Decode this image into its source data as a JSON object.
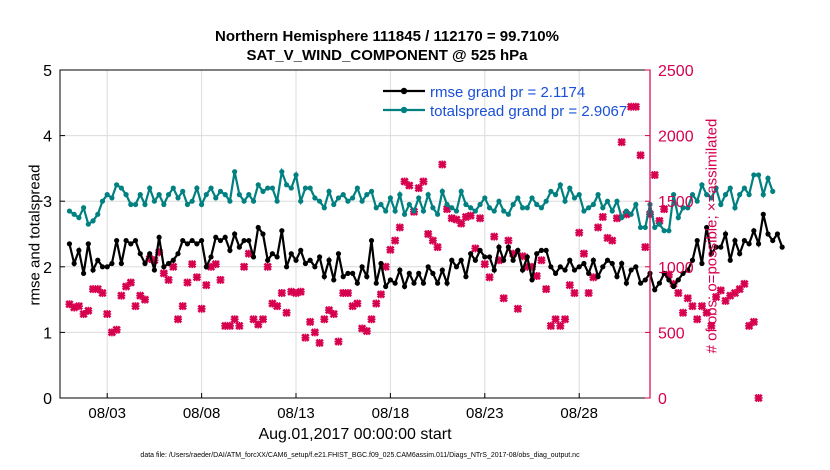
{
  "chart_data": {
    "type": "line",
    "title": "Northern Hemisphere 111845 / 112170 = 99.710%",
    "subtitle": "SAT_V_WIND_COMPONENT @ 525 hPa",
    "xlabel": "Aug.01,2017 00:00:00 start",
    "ylabel": "rmse and totalspread",
    "ylabel_right": "# of obs: o=possible; ×=assimilated",
    "footnote": "data file: /Users/raeder/DAI/ATM_forcXX/CAM6_setup/f.e21.FHIST_BGC.f09_025.CAM6assim.011/Diags_NTrS_2017-08/obs_diag_output.nc",
    "xlim": [
      0.5,
      31.75
    ],
    "ylim": [
      0,
      5
    ],
    "ylim_right": [
      0,
      2500
    ],
    "yticks": [
      "0",
      "1",
      "2",
      "3",
      "4",
      "5"
    ],
    "yticks_right": [
      "0",
      "500",
      "1000",
      "1500",
      "2000",
      "2500"
    ],
    "xticks": [
      {
        "day": 3,
        "label": "08/03"
      },
      {
        "day": 8,
        "label": "08/08"
      },
      {
        "day": 13,
        "label": "08/13"
      },
      {
        "day": 18,
        "label": "08/18"
      },
      {
        "day": 23,
        "label": "08/23"
      },
      {
        "day": 28,
        "label": "08/28"
      }
    ],
    "grid": true,
    "legend_position": "top-right",
    "colors": {
      "rmse": "#000000",
      "spread": "#008080",
      "obs": "#d6004f"
    },
    "series": [
      {
        "name": "rmse grand pr = 2.1174",
        "values": [
          2.35,
          2.05,
          2.25,
          1.9,
          2.35,
          1.95,
          2.1,
          2.0,
          2.0,
          2.05,
          2.4,
          2.05,
          2.4,
          2.35,
          2.4,
          2.2,
          2.05,
          2.2,
          1.95,
          2.45,
          2.0,
          2.05,
          2.1,
          2.2,
          2.4,
          2.35,
          2.4,
          2.35,
          2.4,
          2.0,
          2.15,
          2.45,
          2.4,
          2.45,
          2.25,
          2.5,
          2.3,
          2.4,
          2.4,
          2.15,
          2.6,
          2.5,
          2.1,
          2.2,
          2.15,
          2.55,
          2.0,
          2.2,
          2.1,
          2.25,
          2.05,
          2.1,
          2.0,
          2.15,
          1.85,
          2.1,
          1.8,
          2.2,
          1.85,
          1.9,
          1.9,
          1.75,
          2.0,
          1.85,
          2.4,
          1.75,
          2.05,
          1.7,
          1.8,
          1.75,
          1.95,
          1.7,
          1.9,
          1.75,
          1.9,
          1.75,
          2.0,
          1.9,
          1.75,
          1.95,
          1.75,
          2.1,
          2.0,
          2.1,
          1.85,
          2.2,
          2.1,
          2.25,
          2.15,
          2.15,
          1.95,
          2.3,
          2.1,
          2.3,
          2.1,
          2.25,
          1.95,
          2.15,
          1.8,
          2.2,
          2.25,
          2.25,
          2.0,
          1.9,
          2.0,
          1.95,
          2.1,
          1.95,
          2.0,
          2.05,
          1.9,
          2.1,
          1.85,
          2.0,
          2.1,
          2.05,
          1.85,
          2.05,
          1.75,
          1.95,
          2.0,
          1.75,
          1.8,
          1.9,
          1.65,
          1.75,
          1.9,
          1.8,
          1.7,
          1.8,
          1.9,
          1.95,
          2.1,
          2.4,
          2.05,
          2.6,
          2.2,
          2.3,
          2.3,
          2.5,
          2.1,
          2.4,
          2.2,
          2.4,
          2.35,
          2.55,
          2.35,
          2.8,
          2.5,
          2.4,
          2.5,
          2.3
        ]
      },
      {
        "name": "totalspread grand pr = 2.9067",
        "values": [
          2.85,
          2.8,
          2.75,
          2.9,
          2.65,
          2.7,
          2.8,
          3.0,
          3.1,
          3.05,
          3.25,
          3.2,
          3.1,
          2.95,
          2.95,
          3.1,
          2.95,
          3.2,
          3.0,
          3.1,
          2.95,
          3.1,
          3.2,
          3.05,
          3.15,
          2.95,
          3.0,
          3.2,
          2.95,
          3.1,
          3.2,
          3.05,
          3.15,
          3.1,
          3.0,
          3.45,
          3.1,
          3.0,
          3.1,
          3.0,
          3.25,
          3.15,
          3.2,
          3.2,
          3.0,
          3.45,
          3.25,
          3.2,
          3.4,
          3.0,
          3.2,
          3.2,
          3.05,
          3.0,
          2.9,
          3.15,
          2.95,
          3.05,
          3.1,
          3.0,
          3.05,
          3.2,
          3.0,
          3.1,
          3.15,
          2.9,
          2.95,
          2.85,
          3.05,
          2.85,
          3.1,
          2.8,
          2.95,
          2.85,
          3.05,
          2.85,
          3.1,
          2.9,
          2.8,
          3.15,
          2.95,
          2.9,
          2.85,
          3.15,
          2.95,
          2.9,
          2.85,
          2.95,
          3.05,
          2.9,
          2.85,
          3.0,
          2.85,
          2.8,
          2.95,
          3.05,
          2.9,
          2.9,
          3.05,
          2.95,
          2.9,
          3.0,
          3.15,
          3.1,
          3.25,
          3.0,
          3.2,
          3.05,
          3.1,
          2.85,
          2.9,
          2.95,
          3.1,
          2.9,
          3.0,
          2.85,
          3.0,
          2.75,
          2.85,
          2.8,
          2.95,
          2.6,
          2.6,
          2.95,
          2.6,
          2.65,
          2.55,
          2.55,
          3.1,
          2.75,
          2.9,
          2.9,
          3.1,
          3.0,
          3.25,
          3.1,
          3.05,
          3.2,
          2.95,
          3.1,
          3.2,
          2.9,
          3.1,
          3.2,
          3.1,
          3.4,
          3.4,
          3.1,
          3.35,
          3.15
        ]
      },
      {
        "name": "obs assimilated",
        "values": [
          715,
          690,
          700,
          640,
          665,
          830,
          830,
          800,
          640,
          500,
          520,
          780,
          850,
          880,
          700,
          780,
          750,
          1060,
          1050,
          1110,
          950,
          900,
          1000,
          600,
          700,
          880,
          1020,
          920,
          680,
          860,
          1000,
          1020,
          900,
          550,
          550,
          600,
          550,
          1000,
          1100,
          600,
          560,
          600,
          1000,
          720,
          700,
          800,
          650,
          810,
          800,
          810,
          460,
          580,
          500,
          420,
          600,
          670,
          640,
          430,
          800,
          800,
          700,
          720,
          530,
          510,
          600,
          720,
          790,
          1000,
          1130,
          1200,
          1300,
          1650,
          1620,
          1420,
          1600,
          1650,
          1250,
          1200,
          1150,
          1780,
          1440,
          1370,
          1360,
          1330,
          1380,
          1390,
          1140,
          1370,
          1020,
          920,
          1230,
          1050,
          760,
          1200,
          1100,
          680,
          1080,
          1000,
          1000,
          930,
          1050,
          830,
          550,
          600,
          550,
          600,
          860,
          800,
          1260,
          1100,
          800,
          920,
          1300,
          1380,
          1220,
          1200,
          1370,
          1950,
          1400,
          2220,
          2220,
          1850,
          1150,
          1400,
          1700,
          1350,
          1440,
          940,
          870,
          800,
          650,
          760,
          700,
          600,
          700,
          650,
          550,
          770,
          820,
          740,
          780,
          800,
          830,
          870,
          550,
          580,
          0
        ]
      }
    ]
  }
}
